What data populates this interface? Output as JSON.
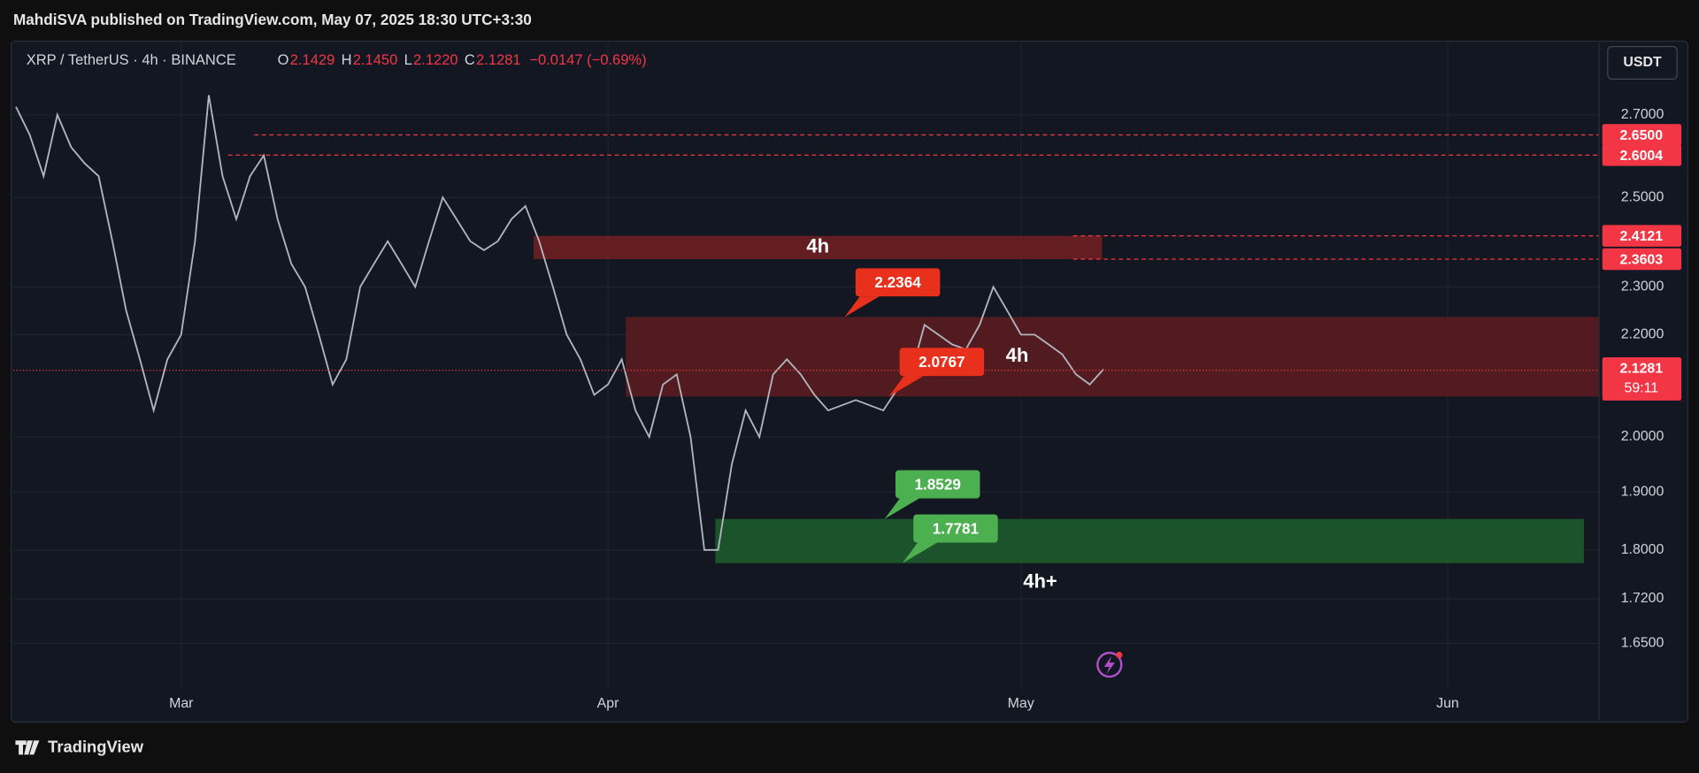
{
  "header": {
    "publisher": "MahdiSVA published on TradingView.com, May 07, 2025 18:30 UTC+3:30"
  },
  "footer": {
    "brand": "TradingView"
  },
  "chart_data": {
    "type": "line",
    "symbol": "XRP / TetherUS · 4h · BINANCE",
    "ohlc": [
      {
        "label": "O",
        "value": "2.1429"
      },
      {
        "label": "H",
        "value": "2.1450"
      },
      {
        "label": "L",
        "value": "2.1220"
      },
      {
        "label": "C",
        "value": "2.1281"
      }
    ],
    "change": "−0.0147 (−0.69%)",
    "currency": "USDT",
    "color": "#b2b5be",
    "x": [
      -12,
      -11,
      -10,
      -9,
      -8,
      -7,
      -6,
      -5,
      -4,
      -3,
      -2,
      -1,
      0,
      1,
      2,
      3,
      4,
      5,
      6,
      7,
      8,
      9,
      10,
      11,
      12,
      13,
      14,
      15,
      16,
      17,
      18,
      19,
      20,
      21,
      22,
      23,
      24,
      25,
      26,
      27,
      28,
      29,
      30,
      31,
      32,
      33,
      34,
      35,
      36,
      37,
      38,
      39,
      40,
      41,
      42,
      43,
      44,
      45,
      46,
      47,
      48,
      49,
      50,
      51,
      52,
      53,
      54,
      55,
      56,
      57,
      58,
      59,
      60,
      61,
      62,
      63,
      64,
      65,
      66,
      67
    ],
    "values": [
      2.72,
      2.65,
      2.55,
      2.7,
      2.62,
      2.58,
      2.55,
      2.4,
      2.25,
      2.15,
      2.05,
      2.15,
      2.2,
      2.4,
      2.75,
      2.55,
      2.45,
      2.55,
      2.6,
      2.45,
      2.35,
      2.3,
      2.2,
      2.1,
      2.15,
      2.3,
      2.35,
      2.4,
      2.35,
      2.3,
      2.4,
      2.5,
      2.45,
      2.4,
      2.38,
      2.4,
      2.45,
      2.48,
      2.4,
      2.3,
      2.2,
      2.15,
      2.08,
      2.1,
      2.15,
      2.05,
      2.0,
      2.1,
      2.12,
      2.0,
      1.8,
      1.8,
      1.95,
      2.05,
      2.0,
      2.12,
      2.15,
      2.12,
      2.08,
      2.05,
      2.06,
      2.07,
      2.06,
      2.05,
      2.09,
      2.12,
      2.22,
      2.2,
      2.18,
      2.17,
      2.22,
      2.3,
      2.25,
      2.2,
      2.2,
      2.18,
      2.16,
      2.12,
      2.1,
      2.13
    ],
    "xlim": [
      -12.2,
      103
    ],
    "xticks": [
      {
        "value": 0,
        "label": "Mar"
      },
      {
        "value": 31,
        "label": "Apr"
      },
      {
        "value": 61,
        "label": "May"
      },
      {
        "value": 92,
        "label": "Jun"
      }
    ],
    "ylim": [
      1.582,
      2.886
    ],
    "log_scale": true,
    "grid": true,
    "yticks": [
      {
        "value": 1.65,
        "label": "1.6500"
      },
      {
        "value": 1.72,
        "label": "1.7200"
      },
      {
        "value": 1.8,
        "label": "1.8000"
      },
      {
        "value": 1.9,
        "label": "1.9000"
      },
      {
        "value": 2,
        "label": "2.0000"
      },
      {
        "value": 2.2,
        "label": "2.2000"
      },
      {
        "value": 2.3,
        "label": "2.3000"
      },
      {
        "value": 2.5,
        "label": "2.5000"
      },
      {
        "value": 2.7,
        "label": "2.7000"
      }
    ],
    "zones": [
      {
        "low": 2.3603,
        "high": 2.4121,
        "from": 25.6,
        "to": 66.9,
        "color": "#6e1f22",
        "label": "4h"
      },
      {
        "low": 2.0767,
        "high": 2.2364,
        "from": 32.3,
        "to": 103,
        "color": "#5a1c20",
        "label": "4h"
      },
      {
        "low": 1.7781,
        "high": 1.8529,
        "from": 38.8,
        "to": 101.9,
        "color": "#1d5a2c",
        "label": "4h+"
      }
    ],
    "levels": [
      {
        "value": 2.65,
        "label": "2.6500",
        "from": 5.3
      },
      {
        "value": 2.6004,
        "label": "2.6004",
        "from": 3.4
      },
      {
        "value": 2.4121,
        "label": "2.4121",
        "from": 64.8
      },
      {
        "value": 2.3603,
        "label": "2.3603",
        "from": 64.8
      }
    ],
    "callouts": [
      {
        "value": 2.2364,
        "label": "2.2364",
        "x": 48.2,
        "color": "#e8301c"
      },
      {
        "value": 2.0767,
        "label": "2.0767",
        "x": 51.4,
        "color": "#e8301c"
      },
      {
        "value": 1.8529,
        "label": "1.8529",
        "x": 51.1,
        "color": "#4caf50"
      },
      {
        "value": 1.7781,
        "label": "1.7781",
        "x": 52.4,
        "color": "#4caf50"
      }
    ],
    "current": {
      "value": 2.1281,
      "label": "2.1281",
      "countdown": "59:11"
    }
  }
}
